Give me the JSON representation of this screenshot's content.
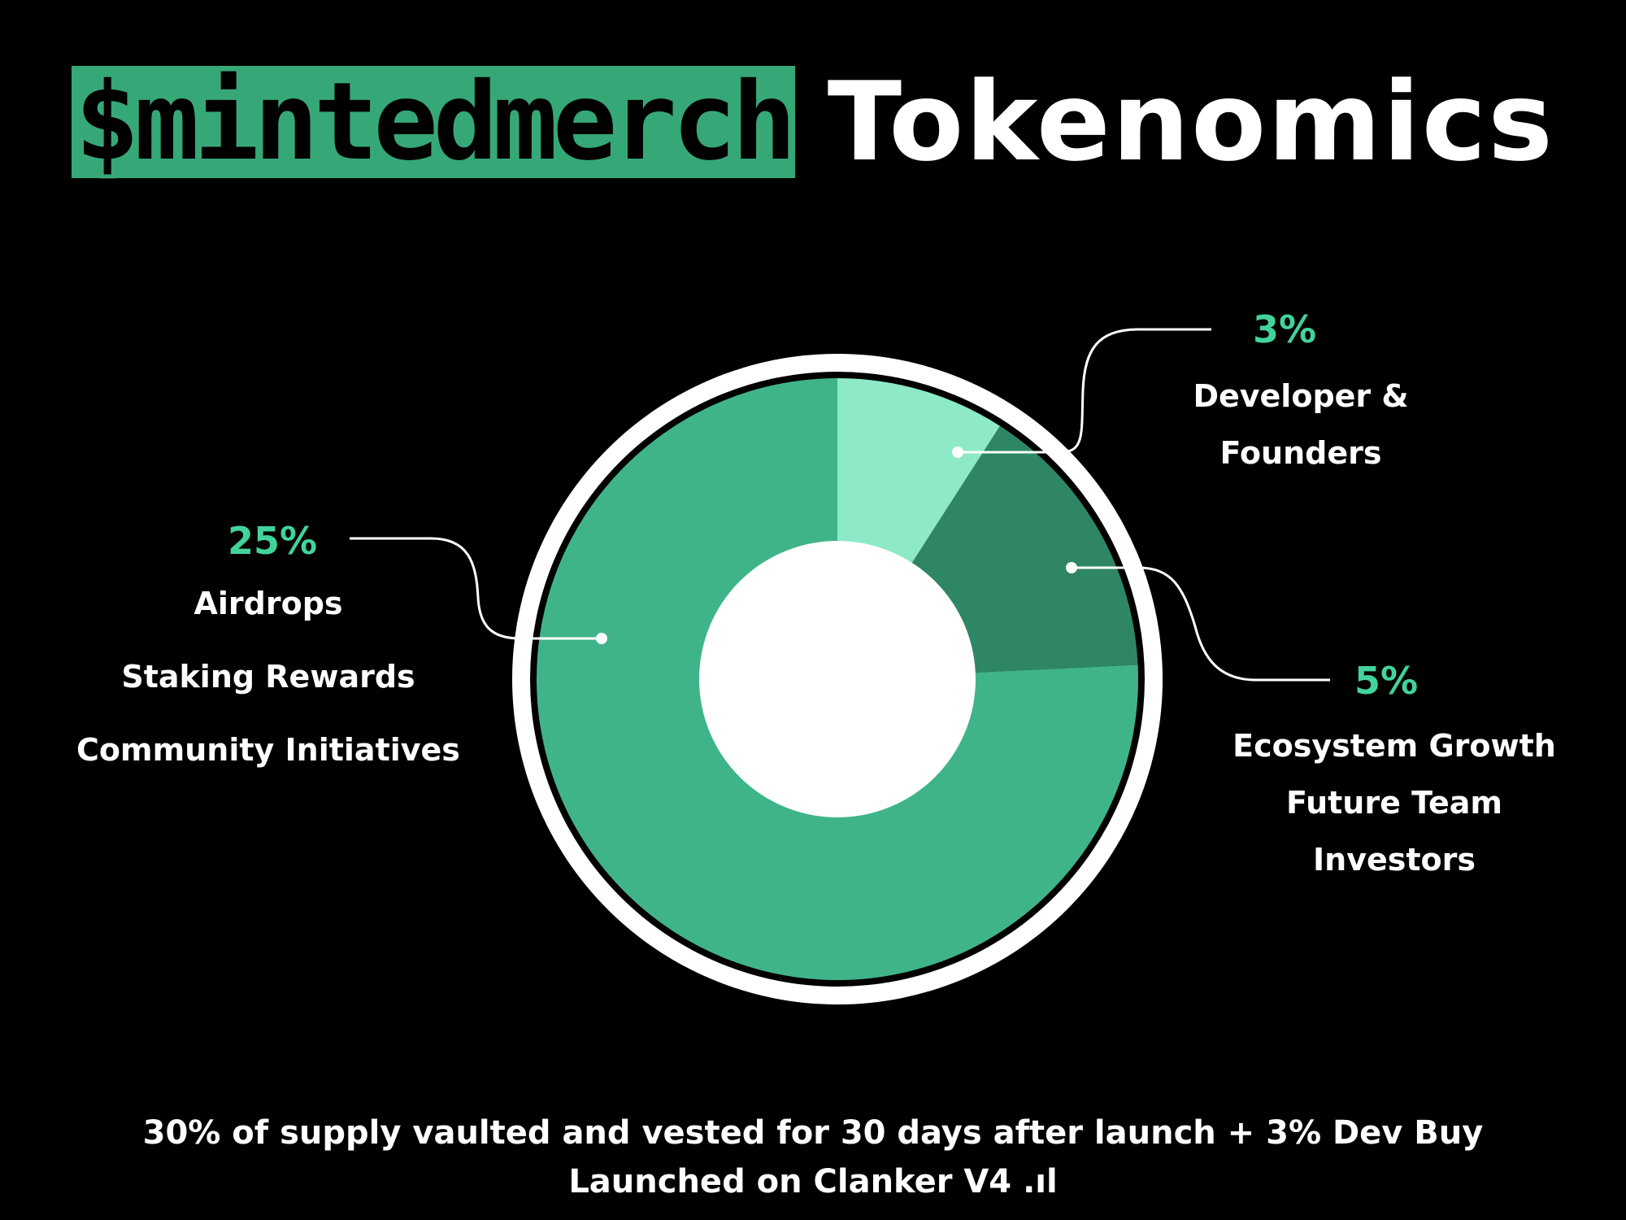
{
  "header": {
    "brand": "$mintedmerch",
    "title": "Tokenomics"
  },
  "colors": {
    "background": "#000000",
    "brand_green": "#36a877",
    "percent_text": "#42d39a",
    "ring": "#ffffff",
    "hole": "#ffffff"
  },
  "chart_data": {
    "type": "pie",
    "style": "donut",
    "start_angle_deg": 0,
    "direction": "clockwise",
    "slices": [
      {
        "value": 3,
        "label": "3%",
        "categories": [
          "Developer &",
          "Founders"
        ],
        "color": "#8de9c6"
      },
      {
        "value": 5,
        "label": "5%",
        "categories": [
          "Ecosystem Growth",
          "Future Team",
          "Investors"
        ],
        "color": "#2f8665"
      },
      {
        "value": 25,
        "label": "25%",
        "categories": [
          "Airdrops",
          "Staking Rewards",
          "Community Initiatives"
        ],
        "color": "#40b489"
      }
    ]
  },
  "footer": {
    "line1": "30% of supply vaulted and vested for 30 days after launch + 3% Dev Buy",
    "line2": "Launched on Clanker V4 .ıl"
  }
}
